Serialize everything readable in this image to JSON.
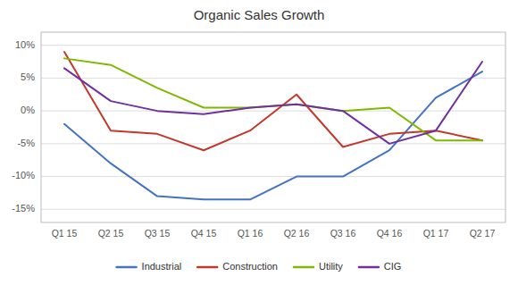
{
  "chart_data": {
    "type": "line",
    "title": "Organic Sales Growth",
    "categories": [
      "Q1 15",
      "Q2 15",
      "Q3 15",
      "Q4 15",
      "Q1 16",
      "Q2 16",
      "Q3 16",
      "Q4 16",
      "Q1 17",
      "Q2 17"
    ],
    "series": [
      {
        "name": "Industrial",
        "color": "#4472C4",
        "values": [
          -2,
          -8,
          -13,
          -13.5,
          -13.5,
          -10,
          -10,
          -6,
          2,
          6
        ]
      },
      {
        "name": "Construction",
        "color": "#C0392B",
        "values": [
          9,
          -3,
          -3.5,
          -6,
          -3,
          2.5,
          -5.5,
          -3.5,
          -3,
          -4.5
        ]
      },
      {
        "name": "Utility",
        "color": "#7FB800",
        "values": [
          8,
          7,
          3.5,
          0.5,
          0.5,
          1,
          0,
          0.5,
          -4.5,
          -4.5
        ]
      },
      {
        "name": "CIG",
        "color": "#7030A0",
        "values": [
          6.5,
          1.5,
          0,
          -0.5,
          0.5,
          1,
          0,
          -5,
          -3,
          7.5
        ]
      }
    ],
    "ylim": [
      -17,
      12
    ],
    "yticks": [
      {
        "value": -15,
        "label": "-15%"
      },
      {
        "value": -10,
        "label": "-10%"
      },
      {
        "value": -5,
        "label": "-5%"
      },
      {
        "value": 0,
        "label": "0%"
      },
      {
        "value": 5,
        "label": "5%"
      },
      {
        "value": 10,
        "label": "10%"
      }
    ],
    "grid": true,
    "legend": "bottom"
  }
}
